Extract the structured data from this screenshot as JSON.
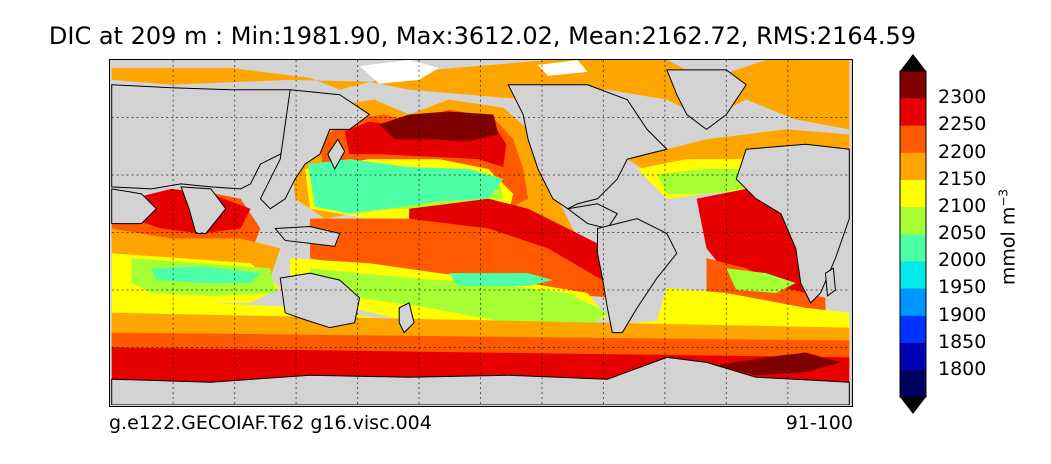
{
  "title": "DIC at 209 m : Min:1981.90, Max:3612.02, Mean:2162.72, RMS:2164.59",
  "footer_left": "g.e122.GECOIAF.T62 g16.visc.004",
  "footer_right": "91-100",
  "colorbar": {
    "units": "mmol m",
    "units_exponent": "−3",
    "levels": [
      "2300",
      "2250",
      "2200",
      "2150",
      "2100",
      "2050",
      "2000",
      "1950",
      "1900",
      "1850",
      "1800"
    ],
    "colors": [
      "#000060",
      "#0000b4",
      "#0033ff",
      "#0096ff",
      "#00e8e8",
      "#4dffa6",
      "#a6ff33",
      "#ffff00",
      "#ffa500",
      "#ff5a00",
      "#e60000",
      "#800000"
    ]
  },
  "map_colors": {
    "land": "#d3d3d3",
    "sea_ice": "#ffffff",
    "c2050": "#4dffa6",
    "c2100": "#a6ff33",
    "c2150": "#ffff00",
    "c2200": "#ffa500",
    "c2250": "#ff5a00",
    "c2300": "#e60000",
    "cmax": "#800000"
  }
}
